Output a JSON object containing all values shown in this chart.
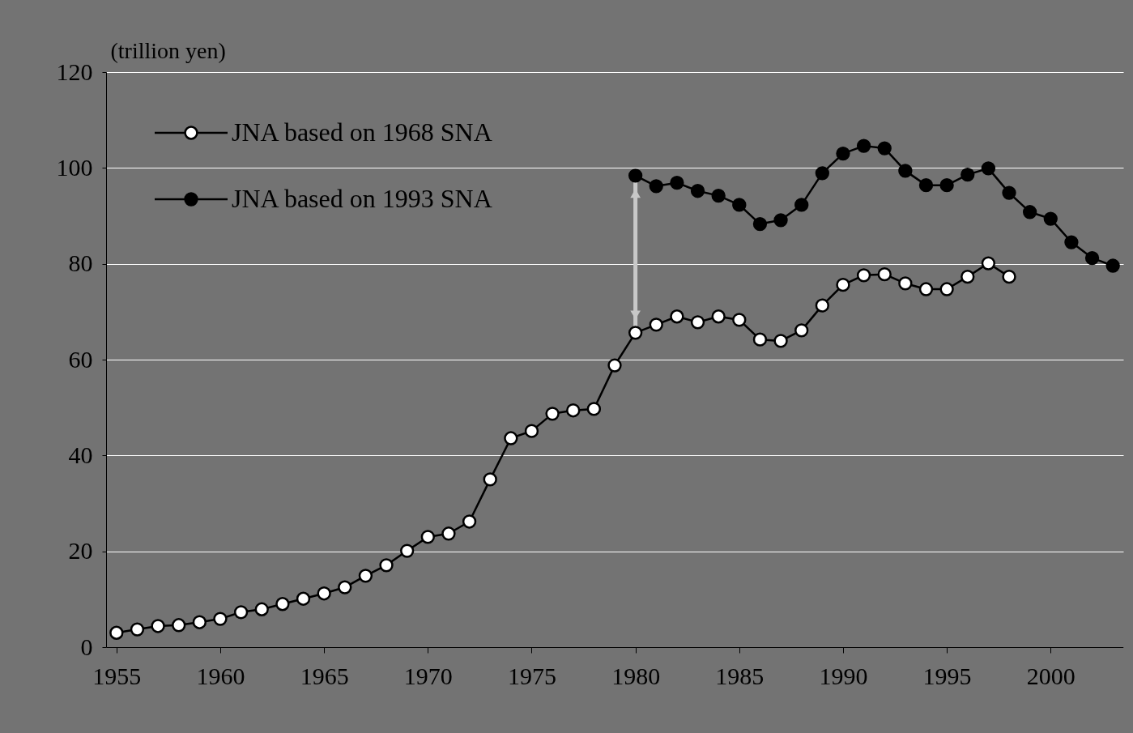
{
  "chart_data": {
    "type": "line",
    "ylabel": "(trillion yen)",
    "xlim": [
      1954.5,
      2003.5
    ],
    "xticks": [
      1955,
      1960,
      1965,
      1970,
      1975,
      1980,
      1985,
      1990,
      1995,
      2000
    ],
    "ylim": [
      0,
      120
    ],
    "yticks": [
      0,
      20,
      40,
      60,
      80,
      100,
      120
    ],
    "grid": "y",
    "legend": "top left",
    "marker": "circle",
    "line_style": "solid",
    "series": [
      {
        "name": "JNA based on 1968 SNA",
        "color": "#000000",
        "x": [
          1955,
          1956,
          1957,
          1958,
          1959,
          1960,
          1961,
          1962,
          1963,
          1964,
          1965,
          1966,
          1967,
          1968,
          1969,
          1970,
          1971,
          1972,
          1973,
          1974,
          1975,
          1976,
          1977,
          1978,
          1979,
          1980,
          1981,
          1982,
          1983,
          1984,
          1985,
          1986,
          1987,
          1988,
          1989,
          1990,
          1991,
          1992,
          1993,
          1994,
          1995,
          1996,
          1997,
          1998
        ],
        "values": [
          3.0,
          3.7,
          4.4,
          4.6,
          5.2,
          5.9,
          7.3,
          7.9,
          9.0,
          10.1,
          11.2,
          12.5,
          14.9,
          17.1,
          20.1,
          23.0,
          23.7,
          26.2,
          35.0,
          43.6,
          45.1,
          48.7,
          49.4,
          49.7,
          58.8,
          65.6,
          67.3,
          69.0,
          67.8,
          69.0,
          68.3,
          64.2,
          63.9,
          66.1,
          71.3,
          75.6,
          77.6,
          77.8,
          75.9,
          74.7,
          74.7,
          77.3,
          80.1,
          77.3
        ]
      },
      {
        "name": "JNA based on 1993 SNA",
        "color": "#000000",
        "x": [
          1980,
          1981,
          1982,
          1983,
          1984,
          1985,
          1986,
          1987,
          1988,
          1989,
          1990,
          1991,
          1992,
          1993,
          1994,
          1995,
          1996,
          1997,
          1998,
          1999,
          2000,
          2001,
          2002,
          2003
        ],
        "values": [
          98.4,
          96.2,
          96.9,
          95.2,
          94.2,
          92.3,
          88.3,
          89.1,
          92.3,
          98.9,
          103.0,
          104.6,
          104.1,
          99.4,
          96.4,
          96.4,
          98.6,
          99.9,
          94.8,
          90.8,
          89.4,
          84.5,
          81.2,
          79.6
        ]
      }
    ]
  }
}
